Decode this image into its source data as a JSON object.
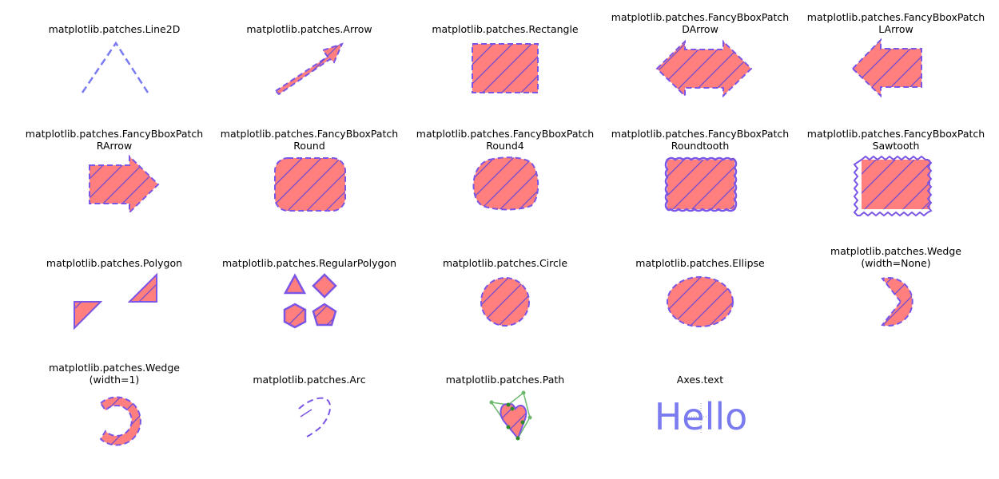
{
  "panels": [
    {
      "line1": "matplotlib.patches.Line2D",
      "line2": ""
    },
    {
      "line1": "matplotlib.patches.Arrow",
      "line2": ""
    },
    {
      "line1": "matplotlib.patches.Rectangle",
      "line2": ""
    },
    {
      "line1": "matplotlib.patches.FancyBboxPatch",
      "line2": "DArrow"
    },
    {
      "line1": "matplotlib.patches.FancyBboxPatch",
      "line2": "LArrow"
    },
    {
      "line1": "matplotlib.patches.FancyBboxPatch",
      "line2": "RArrow"
    },
    {
      "line1": "matplotlib.patches.FancyBboxPatch",
      "line2": "Round"
    },
    {
      "line1": "matplotlib.patches.FancyBboxPatch",
      "line2": "Round4"
    },
    {
      "line1": "matplotlib.patches.FancyBboxPatch",
      "line2": "Roundtooth"
    },
    {
      "line1": "matplotlib.patches.FancyBboxPatch",
      "line2": "Sawtooth"
    },
    {
      "line1": "matplotlib.patches.Polygon",
      "line2": ""
    },
    {
      "line1": "matplotlib.patches.RegularPolygon",
      "line2": ""
    },
    {
      "line1": "matplotlib.patches.Circle",
      "line2": ""
    },
    {
      "line1": "matplotlib.patches.Ellipse",
      "line2": ""
    },
    {
      "line1": "matplotlib.patches.Wedge",
      "line2": "(width=None)"
    },
    {
      "line1": "matplotlib.patches.Wedge",
      "line2": "(width=1)"
    },
    {
      "line1": "matplotlib.patches.Arc",
      "line2": ""
    },
    {
      "line1": "matplotlib.patches.Path",
      "line2": ""
    },
    {
      "line1": "Axes.text",
      "line2": ""
    }
  ],
  "hello_text": "Hello",
  "colors": {
    "face": "#ff7f7f",
    "edge": "#7a55e6",
    "line": "#7b7bf0",
    "hatch": "#6a4ad8",
    "path_points": "#2e8b2e",
    "path_lines": "#6db86d"
  }
}
